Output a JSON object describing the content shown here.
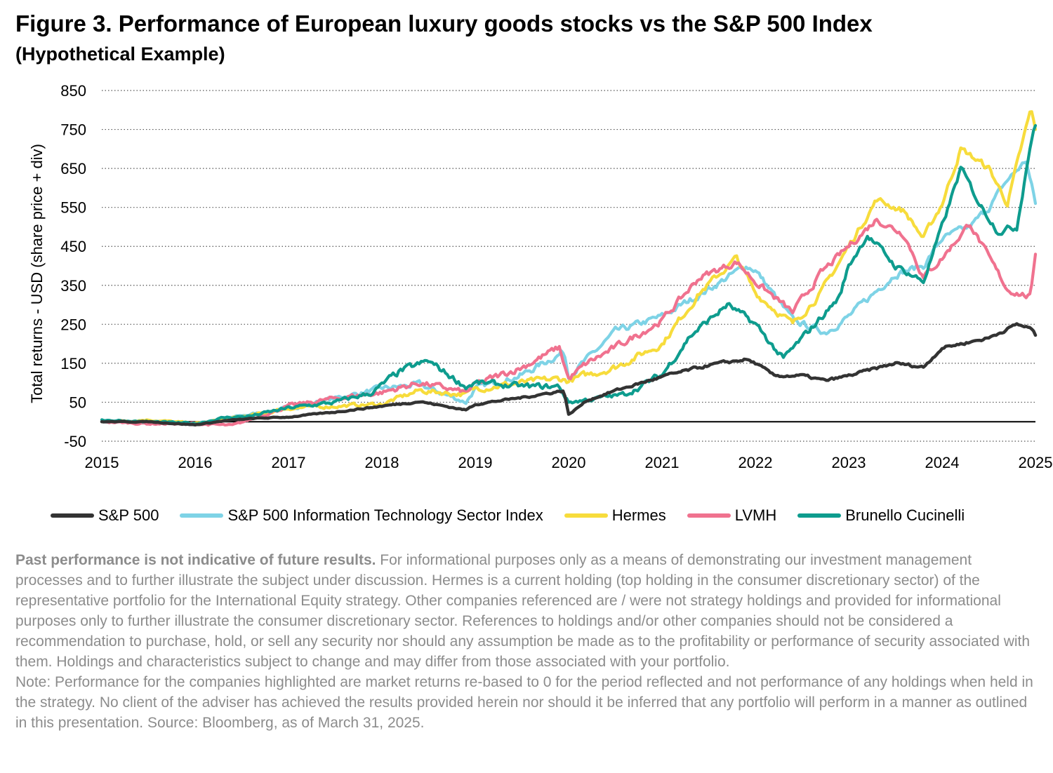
{
  "title": "Figure 3. Performance of European luxury goods stocks vs the S&P 500 Index",
  "subtitle": "(Hypothetical Example)",
  "colors": {
    "sp500": "#333333",
    "it": "#7ed3e6",
    "hermes": "#f7dc3c",
    "lvmh": "#f0728f",
    "brunello": "#0e9c8e"
  },
  "chart_data": {
    "type": "line",
    "ylabel": "Total returns - USD (share price + div)",
    "xlabel": "",
    "ylim": [
      -50,
      850
    ],
    "yticks": [
      -50,
      50,
      150,
      250,
      350,
      450,
      550,
      650,
      750,
      850
    ],
    "xlim": [
      2015,
      2025
    ],
    "xticks": [
      "2015",
      "2016",
      "2017",
      "2018",
      "2019",
      "2020",
      "2021",
      "2022",
      "2023",
      "2024",
      "2025"
    ],
    "grid": "horizontal dotted",
    "legend": "bottom",
    "series": [
      {
        "name": "S&P 500",
        "color_key": "sp500",
        "x": [
          2015.0,
          2015.5,
          2016.0,
          2016.3,
          2016.6,
          2017.0,
          2017.5,
          2018.0,
          2018.4,
          2018.9,
          2019.0,
          2019.5,
          2019.95,
          2020.0,
          2020.2,
          2020.5,
          2021.0,
          2021.5,
          2021.9,
          2022.0,
          2022.2,
          2022.5,
          2022.75,
          2023.0,
          2023.5,
          2023.8,
          2024.0,
          2024.5,
          2024.8,
          2024.95,
          2025.0
        ],
        "y": [
          0,
          0,
          -8,
          2,
          8,
          12,
          25,
          40,
          52,
          30,
          45,
          62,
          80,
          18,
          55,
          80,
          115,
          145,
          160,
          150,
          118,
          118,
          105,
          118,
          150,
          140,
          190,
          215,
          250,
          240,
          222
        ]
      },
      {
        "name": "S&P 500 Information Technology Sector Index",
        "color_key": "it",
        "x": [
          2015.0,
          2015.5,
          2016.0,
          2016.5,
          2017.0,
          2017.5,
          2018.0,
          2018.4,
          2018.9,
          2019.0,
          2019.5,
          2019.95,
          2020.0,
          2020.2,
          2020.5,
          2021.0,
          2021.5,
          2021.9,
          2022.0,
          2022.4,
          2022.75,
          2023.0,
          2023.5,
          2023.8,
          2024.0,
          2024.3,
          2024.5,
          2024.7,
          2024.9,
          2025.0
        ],
        "y": [
          0,
          0,
          -5,
          15,
          35,
          60,
          85,
          95,
          50,
          85,
          120,
          180,
          120,
          160,
          230,
          270,
          340,
          400,
          390,
          260,
          230,
          270,
          380,
          400,
          470,
          500,
          550,
          620,
          670,
          560
        ]
      },
      {
        "name": "Hermes",
        "color_key": "hermes",
        "x": [
          2015.0,
          2015.5,
          2016.0,
          2016.3,
          2016.7,
          2017.0,
          2017.5,
          2018.0,
          2018.4,
          2018.9,
          2019.0,
          2019.5,
          2019.9,
          2020.0,
          2020.2,
          2020.5,
          2021.0,
          2021.4,
          2021.8,
          2022.0,
          2022.4,
          2022.7,
          2023.0,
          2023.3,
          2023.6,
          2023.8,
          2024.0,
          2024.2,
          2024.5,
          2024.7,
          2024.95,
          2025.0
        ],
        "y": [
          0,
          5,
          -5,
          5,
          20,
          35,
          40,
          45,
          80,
          70,
          85,
          100,
          110,
          105,
          120,
          140,
          200,
          330,
          420,
          330,
          250,
          330,
          450,
          570,
          540,
          470,
          560,
          700,
          650,
          560,
          800,
          750
        ]
      },
      {
        "name": "LVMH",
        "color_key": "lvmh",
        "x": [
          2015.0,
          2015.5,
          2016.0,
          2016.4,
          2016.7,
          2017.0,
          2017.5,
          2018.0,
          2018.4,
          2018.9,
          2019.0,
          2019.5,
          2019.9,
          2020.0,
          2020.2,
          2020.5,
          2021.0,
          2021.4,
          2021.8,
          2022.0,
          2022.4,
          2022.7,
          2023.0,
          2023.3,
          2023.6,
          2023.8,
          2024.0,
          2024.3,
          2024.5,
          2024.7,
          2024.95,
          2025.0
        ],
        "y": [
          0,
          -5,
          -5,
          -10,
          15,
          40,
          60,
          75,
          100,
          75,
          95,
          140,
          190,
          110,
          150,
          190,
          260,
          370,
          410,
          360,
          280,
          380,
          450,
          520,
          480,
          370,
          420,
          510,
          420,
          340,
          320,
          430
        ]
      },
      {
        "name": "Brunello Cucinelli",
        "color_key": "brunello",
        "x": [
          2015.0,
          2015.5,
          2016.0,
          2016.3,
          2016.6,
          2017.0,
          2017.5,
          2017.9,
          2018.2,
          2018.5,
          2018.9,
          2019.0,
          2019.5,
          2019.9,
          2020.0,
          2020.3,
          2020.6,
          2021.0,
          2021.3,
          2021.7,
          2022.0,
          2022.3,
          2022.6,
          2022.9,
          2023.0,
          2023.2,
          2023.5,
          2023.8,
          2024.0,
          2024.2,
          2024.4,
          2024.6,
          2024.8,
          2024.95,
          2025.0
        ],
        "y": [
          5,
          0,
          -5,
          10,
          15,
          35,
          50,
          75,
          130,
          155,
          90,
          100,
          90,
          90,
          50,
          60,
          70,
          120,
          220,
          300,
          250,
          160,
          240,
          320,
          400,
          480,
          400,
          360,
          500,
          650,
          560,
          490,
          500,
          720,
          760
        ]
      }
    ]
  },
  "notes": {
    "bold_lead": "Past performance is not indicative of future results.",
    "disclaimer": " For informational purposes only as a means of demonstrating our investment management processes and to further illustrate the subject under discussion. Hermes is a current holding (top holding in the consumer discretionary sector) of the representative portfolio for the International Equity strategy. Other companies referenced are / were not strategy holdings and provided for informational purposes only to further illustrate the consumer discretionary sector. References to holdings and/or other companies should not be considered a recommendation to purchase, hold, or sell any security nor should any assumption be made as to the profitability or performance of security associated with them. Holdings and characteristics subject to change and may differ from those associated with your portfolio.",
    "note": "Note: Performance for the companies highlighted are market returns re-based to 0 for the period reflected and not performance of any holdings when held in the strategy. No client of the adviser has achieved the results provided herein nor should it be inferred that any portfolio will perform in a manner as outlined in this presentation. Source: Bloomberg, as of March 31, 2025."
  }
}
